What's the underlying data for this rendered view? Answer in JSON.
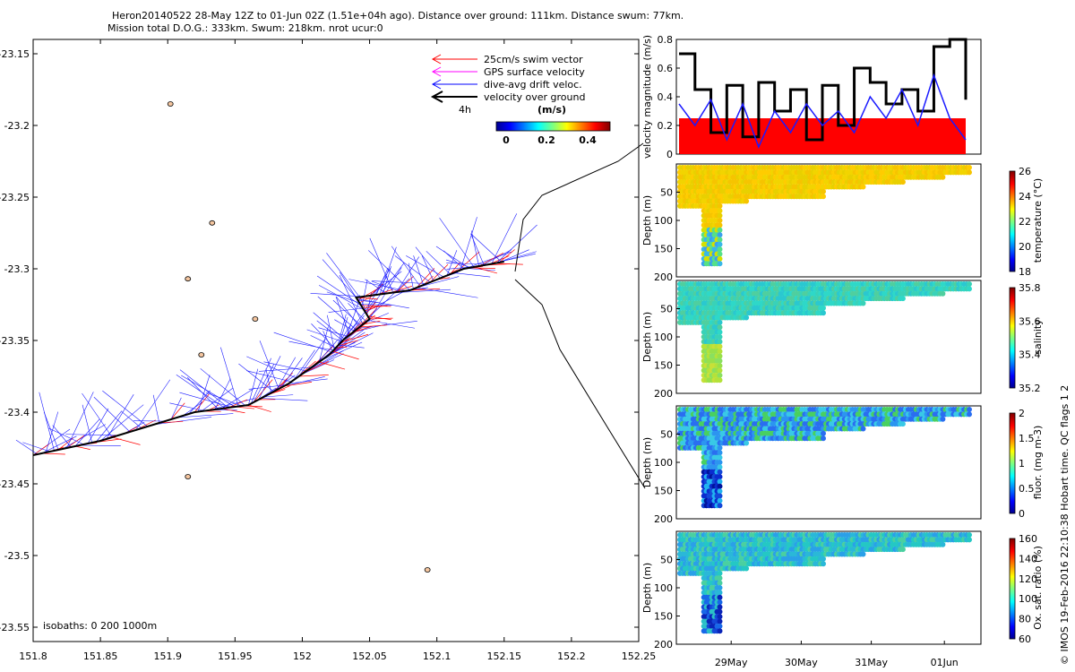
{
  "header": {
    "line1": "Heron20140522 28-May 12Z to 01-Jun 02Z (1.51e+04h ago). Distance over ground: 111km. Distance swum: 77km.",
    "line2": "Mission total D.O.G.: 333km. Swum: 218km. nrot ucur:0"
  },
  "sidebar_note": "© IMOS 19-Feb-2016 22:10:38 Hobart time. QC flags 1  2",
  "chart_data": [
    {
      "type": "scatter",
      "xlabel": "",
      "ylabel": "",
      "xlim": [
        151.8,
        152.25
      ],
      "ylim": [
        -23.56,
        -23.14
      ],
      "x_ticks": [
        "151.8",
        "151.85",
        "151.9",
        "151.95",
        "152",
        "152.05",
        "152.1",
        "152.15",
        "152.2",
        "152.25"
      ],
      "y_ticks": [
        "-23.15",
        "-23.2",
        "-23.25",
        "-23.3",
        "-23.35",
        "-23.4",
        "-23.45",
        "-23.5",
        "-23.55"
      ],
      "legend": {
        "position": "top-right",
        "items": [
          {
            "label": "25cm/s swim vector",
            "color": "#ff0000"
          },
          {
            "label": "GPS surface velocity",
            "color": "#ff00ff"
          },
          {
            "label": "dive-avg drift veloc.",
            "color": "#0000ff"
          },
          {
            "label": "velocity over ground",
            "color": "#000000"
          }
        ],
        "scale_label": "4h"
      },
      "colorbar": {
        "unit": "(m/s)",
        "ticks": [
          "0",
          "0.2",
          "0.4"
        ],
        "range": [
          0,
          0.5
        ]
      },
      "isobaths_label": "isobaths: 0    200   1000m",
      "track": [
        [
          151.8,
          -23.43
        ],
        [
          151.85,
          -23.42
        ],
        [
          151.92,
          -23.4
        ],
        [
          151.96,
          -23.395
        ],
        [
          151.99,
          -23.38
        ],
        [
          152.02,
          -23.36
        ],
        [
          152.03,
          -23.35
        ],
        [
          152.05,
          -23.335
        ],
        [
          152.04,
          -23.32
        ],
        [
          152.08,
          -23.315
        ],
        [
          152.12,
          -23.3
        ],
        [
          152.15,
          -23.295
        ]
      ],
      "islands": [
        [
          151.902,
          -23.185
        ],
        [
          151.933,
          -23.268
        ],
        [
          151.915,
          -23.307
        ],
        [
          151.965,
          -23.335
        ],
        [
          151.925,
          -23.36
        ],
        [
          151.915,
          -23.445
        ],
        [
          152.093,
          -23.51
        ]
      ]
    },
    {
      "type": "line",
      "ylabel": "velocity magnitude (m/s)",
      "ylim": [
        0,
        0.8
      ],
      "y_ticks": [
        "0",
        "0.2",
        "0.4",
        "0.6",
        "0.8"
      ],
      "threshold": 0.25,
      "x": [
        0,
        0.2,
        0.4,
        0.6,
        0.8,
        1.0,
        1.2,
        1.4,
        1.6,
        1.8,
        2.0,
        2.2,
        2.4,
        2.6,
        2.8,
        3.0,
        3.2,
        3.4,
        3.6
      ],
      "series": [
        {
          "values": [
            0.7,
            0.45,
            0.15,
            0.48,
            0.12,
            0.5,
            0.3,
            0.45,
            0.1,
            0.48,
            0.2,
            0.6,
            0.5,
            0.35,
            0.45,
            0.3,
            0.75,
            0.8,
            0.38
          ]
        },
        {
          "values": [
            0.35,
            0.2,
            0.38,
            0.1,
            0.35,
            0.05,
            0.3,
            0.15,
            0.35,
            0.2,
            0.3,
            0.15,
            0.4,
            0.25,
            0.45,
            0.2,
            0.55,
            0.25,
            0.1
          ]
        }
      ]
    },
    {
      "type": "heatmap",
      "ylabel": "Depth (m)",
      "colorbar_label": "temperature (°C)",
      "colorbar_ticks": [
        "18",
        "20",
        "22",
        "24",
        "26"
      ],
      "y_ticks": [
        "50",
        "100",
        "150",
        "200"
      ]
    },
    {
      "type": "heatmap",
      "ylabel": "Depth (m)",
      "colorbar_label": "salinity",
      "colorbar_ticks": [
        "35.2",
        "35.4",
        "35.6",
        "35.8"
      ],
      "y_ticks": [
        "50",
        "100",
        "150",
        "200"
      ]
    },
    {
      "type": "heatmap",
      "ylabel": "Depth (m)",
      "colorbar_label": "fluor. (mg m-3)",
      "colorbar_ticks": [
        "0",
        "0.5",
        "1",
        "1.5",
        "2"
      ],
      "y_ticks": [
        "50",
        "100",
        "150",
        "200"
      ]
    },
    {
      "type": "heatmap",
      "ylabel": "Depth (m)",
      "colorbar_label": "Ox. sat. ratio (%)",
      "colorbar_ticks": [
        "60",
        "80",
        "100",
        "120",
        "140",
        "160"
      ],
      "y_ticks": [
        "50",
        "100",
        "150",
        "200"
      ],
      "x_ticks": [
        "29May",
        "30May",
        "31May",
        "01Jun"
      ]
    }
  ]
}
